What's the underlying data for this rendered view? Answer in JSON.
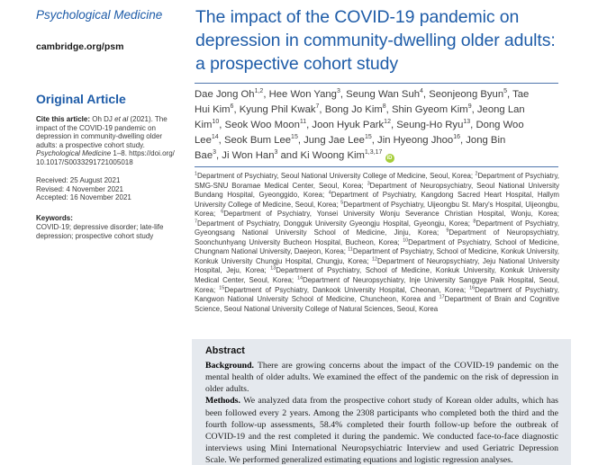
{
  "journal": {
    "name": "Psychological Medicine",
    "url": "cambridge.org/psm"
  },
  "sidebar": {
    "section_label": "Original Article",
    "cite": {
      "label": "Cite this article:",
      "part1": " Oh DJ ",
      "etal": "et al",
      "part2": " (2021). The impact of the COVID-19 pandemic on depression in community-dwelling older adults: a prospective cohort study. ",
      "journal_italic": "Psychological Medicine",
      "part3": " 1–8. ",
      "doi": "https://doi.org/10.1017/S0033291721005018"
    },
    "received": "Received: 25 August 2021",
    "revised": "Revised: 4 November 2021",
    "accepted": "Accepted: 16 November 2021",
    "keywords_label": "Keywords:",
    "keywords": "COVID-19; depressive disorder; late-life depression; prospective cohort study"
  },
  "article": {
    "title": "The impact of the COVID-19 pandemic on depression in community-dwelling older adults: a prospective cohort study",
    "authors": [
      {
        "name": "Dae Jong Oh",
        "sup": "1,2"
      },
      {
        "name": "Hee Won Yang",
        "sup": "3"
      },
      {
        "name": "Seung Wan Suh",
        "sup": "4"
      },
      {
        "name": "Seonjeong Byun",
        "sup": "5"
      },
      {
        "name": "Tae Hui Kim",
        "sup": "6"
      },
      {
        "name": "Kyung Phil Kwak",
        "sup": "7"
      },
      {
        "name": "Bong Jo Kim",
        "sup": "8"
      },
      {
        "name": "Shin Gyeom Kim",
        "sup": "9"
      },
      {
        "name": "Jeong Lan Kim",
        "sup": "10"
      },
      {
        "name": "Seok Woo Moon",
        "sup": "11"
      },
      {
        "name": "Joon Hyuk Park",
        "sup": "12"
      },
      {
        "name": "Seung-Ho Ryu",
        "sup": "13"
      },
      {
        "name": "Dong Woo Lee",
        "sup": "14"
      },
      {
        "name": "Seok Bum Lee",
        "sup": "15"
      },
      {
        "name": "Jung Jae Lee",
        "sup": "15"
      },
      {
        "name": "Jin Hyeong Jhoo",
        "sup": "16"
      },
      {
        "name": "Jong Bin Bae",
        "sup": "3"
      },
      {
        "name": "Ji Won Han",
        "sup": "3"
      },
      {
        "name": "Ki Woong Kim",
        "sup": "1,3,17",
        "orcid": true
      }
    ],
    "affiliations": [
      {
        "sup": "1",
        "text": "Department of Psychiatry, Seoul National University College of Medicine, Seoul, Korea"
      },
      {
        "sup": "2",
        "text": "Department of Psychiatry, SMG-SNU Boramae Medical Center, Seoul, Korea"
      },
      {
        "sup": "3",
        "text": "Department of Neuropsychiatry, Seoul National University Bundang Hospital, Gyeonggido, Korea"
      },
      {
        "sup": "4",
        "text": "Department of Psychiatry, Kangdong Sacred Heart Hospital, Hallym University College of Medicine, Seoul, Korea"
      },
      {
        "sup": "5",
        "text": "Department of Psychiatry, Uijeongbu St. Mary's Hospital, Uijeongbu, Korea"
      },
      {
        "sup": "6",
        "text": "Department of Psychiatry, Yonsei University Wonju Severance Christian Hospital, Wonju, Korea"
      },
      {
        "sup": "7",
        "text": "Department of Psychiatry, Dongguk University Gyeongju Hospital, Gyeongju, Korea"
      },
      {
        "sup": "8",
        "text": "Department of Psychiatry, Gyeongsang National University School of Medicine, Jinju, Korea"
      },
      {
        "sup": "9",
        "text": "Department of Neuropsychiatry, Soonchunhyang University Bucheon Hospital, Bucheon, Korea"
      },
      {
        "sup": "10",
        "text": "Department of Psychiatry, School of Medicine, Chungnam National University, Daejeon, Korea"
      },
      {
        "sup": "11",
        "text": "Department of Psychiatry, School of Medicine, Konkuk University, Konkuk University Chungju Hospital, Chungju, Korea"
      },
      {
        "sup": "12",
        "text": "Department of Neuropsychiatry, Jeju National University Hospital, Jeju, Korea"
      },
      {
        "sup": "13",
        "text": "Department of Psychiatry, School of Medicine, Konkuk University, Konkuk University Medical Center, Seoul, Korea"
      },
      {
        "sup": "14",
        "text": "Department of Neuropsychiatry, Inje University Sanggye Paik Hospital, Seoul, Korea"
      },
      {
        "sup": "15",
        "text": "Department of Psychiatry, Dankook University Hospital, Cheonan, Korea"
      },
      {
        "sup": "16",
        "text": "Department of Psychiatry, Kangwon National University School of Medicine, Chuncheon, Korea"
      },
      {
        "sup": "17",
        "text": "Department of Brain and Cognitive Science, Seoul National University College of Natural Sciences, Seoul, Korea"
      }
    ],
    "abstract": {
      "heading": "Abstract",
      "paragraphs": [
        {
          "label": "Background.",
          "text": "There are growing concerns about the impact of the COVID-19 pandemic on the mental health of older adults. We examined the effect of the pandemic on the risk of depression in older adults."
        },
        {
          "label": "Methods.",
          "text": "We analyzed data from the prospective cohort study of Korean older adults, which has been followed every 2 years. Among the 2308 participants who completed both the third and the fourth follow-up assessments, 58.4% completed their fourth follow-up before the outbreak of COVID-19 and the rest completed it during the pandemic. We conducted face-to-face diagnostic interviews using Mini International Neuropsychiatric Interview and used Geriatric Depression Scale. We performed generalized estimating equations and logistic regression analyses."
        }
      ]
    }
  },
  "icons": {
    "orcid_label": "iD"
  },
  "colors": {
    "accent_blue": "#1e5ca8",
    "rule": "#4f76ad",
    "abstract_bg": "#e5e9ee",
    "orcid_green": "#a6ce39"
  }
}
